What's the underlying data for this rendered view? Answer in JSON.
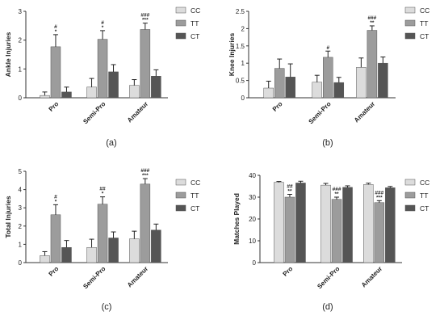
{
  "figure": {
    "legend_entries": [
      "CC",
      "TT",
      "CT"
    ],
    "colors": {
      "CC": "#dcdcdc",
      "TT": "#9c9c9c",
      "CT": "#555555",
      "axis": "#333333",
      "error": "#222222"
    }
  },
  "chart_data": [
    {
      "panel_label": "(a)",
      "type": "bar",
      "ylabel": "Ankle Injuries",
      "categories": [
        "Pro",
        "Semi-Pro",
        "Amateur"
      ],
      "ylim": [
        0,
        3
      ],
      "yticks": [
        0,
        1,
        2,
        3
      ],
      "legend": "right",
      "series": [
        {
          "name": "CC",
          "values": [
            0.08,
            0.37,
            0.43
          ],
          "errors": [
            0.12,
            0.3,
            0.2
          ]
        },
        {
          "name": "TT",
          "values": [
            1.77,
            2.03,
            2.37
          ],
          "errors": [
            0.42,
            0.3,
            0.22
          ],
          "annotations": [
            [
              "#",
              "*"
            ],
            [
              "#",
              "*"
            ],
            [
              "###",
              "***"
            ]
          ]
        },
        {
          "name": "CT",
          "values": [
            0.2,
            0.9,
            0.75
          ],
          "errors": [
            0.17,
            0.25,
            0.22
          ]
        }
      ]
    },
    {
      "panel_label": "(b)",
      "type": "bar",
      "ylabel": "Knee Injuries",
      "categories": [
        "Pro",
        "Semi-Pro",
        "Amateur"
      ],
      "ylim": [
        0,
        2.5
      ],
      "yticks": [
        0.0,
        0.5,
        1.0,
        1.5,
        2.0,
        2.5
      ],
      "legend": "right",
      "series": [
        {
          "name": "CC",
          "values": [
            0.28,
            0.45,
            0.88
          ],
          "errors": [
            0.2,
            0.2,
            0.27
          ]
        },
        {
          "name": "TT",
          "values": [
            0.85,
            1.17,
            1.95
          ],
          "errors": [
            0.27,
            0.18,
            0.13
          ],
          "annotations": [
            [],
            [
              "#"
            ],
            [
              "###",
              "**"
            ]
          ]
        },
        {
          "name": "CT",
          "values": [
            0.6,
            0.44,
            1.0
          ],
          "errors": [
            0.38,
            0.15,
            0.18
          ]
        }
      ]
    },
    {
      "panel_label": "(c)",
      "type": "bar",
      "ylabel": "Total Injuries",
      "categories": [
        "Pro",
        "Semi-Pro",
        "Amateur"
      ],
      "ylim": [
        0,
        5
      ],
      "yticks": [
        0,
        1,
        2,
        3,
        4,
        5
      ],
      "legend": "right",
      "series": [
        {
          "name": "CC",
          "values": [
            0.38,
            0.83,
            1.3
          ],
          "errors": [
            0.22,
            0.45,
            0.42
          ]
        },
        {
          "name": "TT",
          "values": [
            2.62,
            3.2,
            4.3
          ],
          "errors": [
            0.55,
            0.4,
            0.3
          ],
          "annotations": [
            [
              "#",
              "*"
            ],
            [
              "##",
              "*"
            ],
            [
              "###",
              "***"
            ]
          ]
        },
        {
          "name": "CT",
          "values": [
            0.83,
            1.35,
            1.78
          ],
          "errors": [
            0.38,
            0.33,
            0.33
          ]
        }
      ]
    },
    {
      "panel_label": "(d)",
      "type": "bar",
      "ylabel": "Matches Played",
      "categories": [
        "Pro",
        "Semi-Pro",
        "Amateur"
      ],
      "ylim": [
        0,
        40
      ],
      "yticks": [
        0,
        10,
        20,
        30,
        40
      ],
      "legend": "right",
      "series": [
        {
          "name": "CC",
          "values": [
            36.8,
            35.5,
            35.8
          ],
          "errors": [
            0.4,
            0.8,
            0.6
          ]
        },
        {
          "name": "TT",
          "values": [
            30.0,
            29.0,
            27.5
          ],
          "errors": [
            1.3,
            1.0,
            0.9
          ],
          "annotations": [
            [
              "##",
              "**"
            ],
            [
              "###",
              "**"
            ],
            [
              "###",
              "***"
            ]
          ]
        },
        {
          "name": "CT",
          "values": [
            36.5,
            34.5,
            34.3
          ],
          "errors": [
            0.8,
            0.7,
            0.6
          ]
        }
      ]
    }
  ]
}
